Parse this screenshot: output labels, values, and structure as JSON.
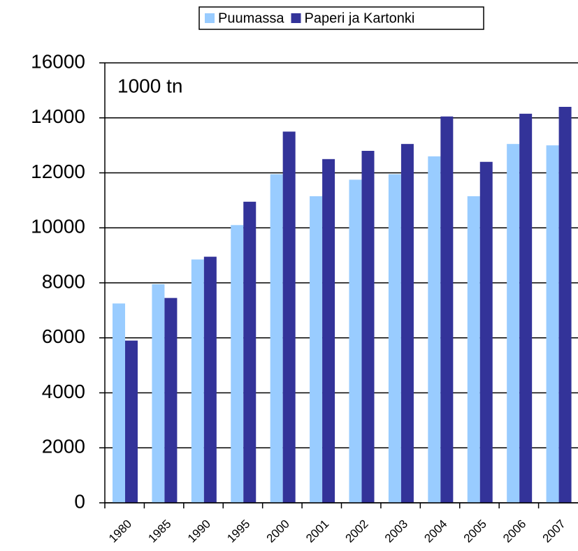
{
  "chart_data": {
    "type": "bar",
    "annotation": "1000 tn",
    "categories": [
      "1980",
      "1985",
      "1990",
      "1995",
      "2000",
      "2001",
      "2002",
      "2003",
      "2004",
      "2005",
      "2006",
      "2007"
    ],
    "series": [
      {
        "name": "Puumassa",
        "color": "#99ccff",
        "values": [
          7250,
          7950,
          8850,
          10100,
          11950,
          11150,
          11750,
          11950,
          12600,
          11150,
          13050,
          13000
        ]
      },
      {
        "name": "Paperi ja Kartonki",
        "color": "#333399",
        "values": [
          5900,
          7450,
          8950,
          10950,
          13500,
          12500,
          12800,
          13050,
          14050,
          12400,
          14150,
          14400
        ]
      }
    ],
    "ylim": [
      0,
      16000
    ],
    "yticks": [
      0,
      2000,
      4000,
      6000,
      8000,
      10000,
      12000,
      14000,
      16000
    ],
    "grid": true,
    "legend": "top"
  }
}
